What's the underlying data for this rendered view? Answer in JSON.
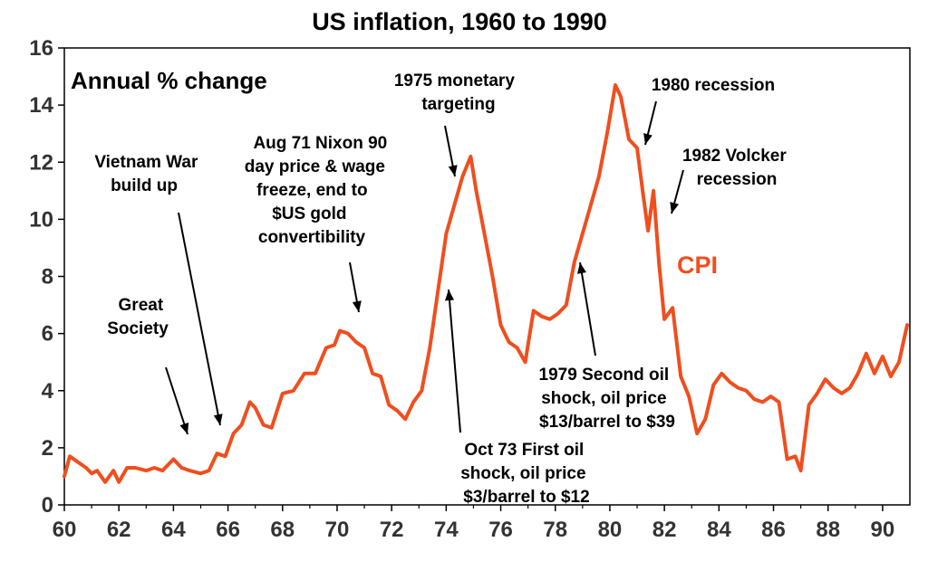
{
  "chart_data": {
    "type": "line",
    "title": "US inflation, 1960 to 1990",
    "subtitle": "Annual % change",
    "xlim": [
      60,
      91
    ],
    "ylim": [
      0,
      16
    ],
    "x_ticks": [
      60,
      62,
      64,
      66,
      68,
      70,
      72,
      74,
      76,
      78,
      80,
      82,
      84,
      86,
      88,
      90
    ],
    "x_tick_labels": [
      "60",
      "62",
      "64",
      "66",
      "68",
      "70",
      "72",
      "74",
      "76",
      "78",
      "80",
      "82",
      "84",
      "86",
      "88",
      "90"
    ],
    "y_ticks": [
      0,
      2,
      4,
      6,
      8,
      10,
      12,
      14,
      16
    ],
    "y_tick_labels": [
      "0",
      "2",
      "4",
      "6",
      "8",
      "10",
      "12",
      "14",
      "16"
    ],
    "grid": false,
    "colors": {
      "series": "#f04e1e",
      "axes": "#000000"
    },
    "series": [
      {
        "name": "CPI",
        "x": [
          60.0,
          60.2,
          60.5,
          60.8,
          61.0,
          61.2,
          61.5,
          61.8,
          62.0,
          62.3,
          62.6,
          63.0,
          63.3,
          63.6,
          64.0,
          64.3,
          64.6,
          65.0,
          65.3,
          65.6,
          65.9,
          66.2,
          66.5,
          66.8,
          67.0,
          67.3,
          67.6,
          68.0,
          68.4,
          68.8,
          69.2,
          69.6,
          69.9,
          70.1,
          70.4,
          70.7,
          71.0,
          71.3,
          71.6,
          71.9,
          72.2,
          72.5,
          72.8,
          73.1,
          73.4,
          73.7,
          74.0,
          74.3,
          74.6,
          74.9,
          75.1,
          75.4,
          75.7,
          76.0,
          76.3,
          76.6,
          76.9,
          77.2,
          77.5,
          77.8,
          78.1,
          78.4,
          78.7,
          79.0,
          79.3,
          79.6,
          79.9,
          80.2,
          80.4,
          80.7,
          81.0,
          81.2,
          81.4,
          81.6,
          81.8,
          82.0,
          82.3,
          82.6,
          82.9,
          83.2,
          83.5,
          83.8,
          84.1,
          84.4,
          84.7,
          85.0,
          85.3,
          85.6,
          85.9,
          86.2,
          86.5,
          86.8,
          87.0,
          87.3,
          87.6,
          87.9,
          88.2,
          88.5,
          88.8,
          89.1,
          89.4,
          89.7,
          90.0,
          90.3,
          90.6,
          90.9
        ],
        "values": [
          1.0,
          1.7,
          1.5,
          1.3,
          1.1,
          1.2,
          0.8,
          1.2,
          0.8,
          1.3,
          1.3,
          1.2,
          1.3,
          1.2,
          1.6,
          1.3,
          1.2,
          1.1,
          1.2,
          1.8,
          1.7,
          2.5,
          2.8,
          3.6,
          3.4,
          2.8,
          2.7,
          3.9,
          4.0,
          4.6,
          4.6,
          5.5,
          5.6,
          6.1,
          6.0,
          5.7,
          5.5,
          4.6,
          4.5,
          3.5,
          3.3,
          3.0,
          3.6,
          4.0,
          5.5,
          7.5,
          9.5,
          10.5,
          11.5,
          12.2,
          11.0,
          9.5,
          8.0,
          6.3,
          5.7,
          5.5,
          5.0,
          6.8,
          6.6,
          6.5,
          6.7,
          7.0,
          8.5,
          9.5,
          10.5,
          11.5,
          13.0,
          14.7,
          14.3,
          12.8,
          12.5,
          11.0,
          9.6,
          11.0,
          8.5,
          6.5,
          6.9,
          4.5,
          3.8,
          2.5,
          3.0,
          4.2,
          4.6,
          4.3,
          4.1,
          4.0,
          3.7,
          3.6,
          3.8,
          3.6,
          1.6,
          1.7,
          1.2,
          3.5,
          3.9,
          4.4,
          4.1,
          3.9,
          4.1,
          4.6,
          5.3,
          4.6,
          5.2,
          4.5,
          5.0,
          6.3
        ]
      }
    ],
    "series_label": "CPI",
    "annotations": [
      {
        "lines": [
          "Great",
          "Society"
        ],
        "year": 64.6,
        "value": 2.5
      },
      {
        "lines": [
          "Vietnam War",
          "build up"
        ],
        "year": 65.8,
        "value": 2.7
      },
      {
        "lines": [
          "Aug 71 Nixon 90",
          "day price & wage",
          "freeze, end to",
          "$US gold",
          "convertibility"
        ],
        "year": 70.8,
        "value": 6.6
      },
      {
        "lines": [
          "1975 monetary",
          "targeting"
        ],
        "year": 74.3,
        "value": 11.3
      },
      {
        "lines": [
          "Oct 73 First oil",
          "shock, oil price",
          "$3/barrel to $12"
        ],
        "year": 73.9,
        "value": 7.4
      },
      {
        "lines": [
          "1979 Second oil",
          "shock, oil price",
          "$13/barrel to $39"
        ],
        "year": 78.9,
        "value": 8.8
      },
      {
        "lines": [
          "1980 recession"
        ],
        "year": 81.3,
        "value": 12.5
      },
      {
        "lines": [
          "1982 Volcker",
          "recession"
        ],
        "year": 82.3,
        "value": 10.2
      }
    ]
  }
}
